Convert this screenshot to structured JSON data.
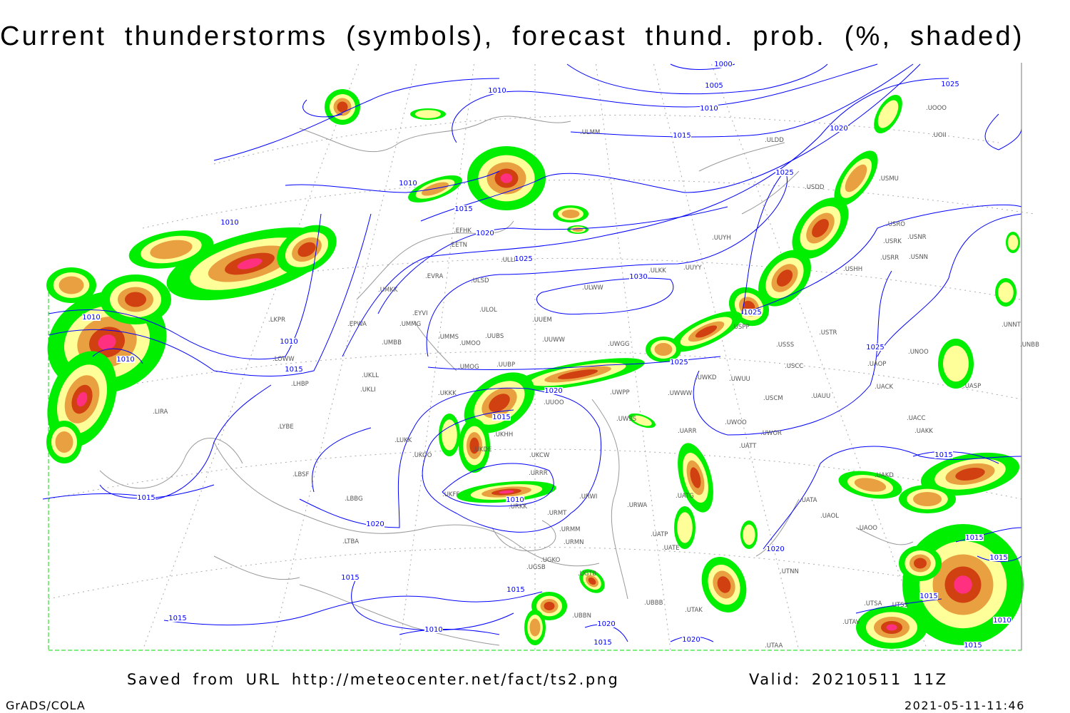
{
  "title": "Current thunderstorms (symbols), forecast thund. prob. (%, shaded)",
  "footer": {
    "saved_from": "Saved from URL http://meteocenter.net/fact/ts2.png",
    "valid": "Valid: 20210511 11Z",
    "software": "GrADS/COLA",
    "timestamp": "2021-05-11-11:46"
  },
  "colors": {
    "isobar": "#0000ff",
    "coastline": "#999999",
    "prob_low": "#00ee00",
    "prob_mid": "#ffff99",
    "prob_high": "#e8a040",
    "prob_very_high": "#d04010",
    "prob_extreme": "#ff3080"
  },
  "isobar_labels": [
    "1000",
    "1005",
    "1010",
    "1010",
    "1015",
    "1020",
    "1025",
    "1010",
    "1010",
    "1015",
    "1020",
    "1025",
    "1030",
    "1025",
    "1025",
    "1010",
    "1010",
    "1015",
    "1010",
    "1015",
    "1020",
    "1020",
    "1015",
    "1025",
    "1020",
    "1015",
    "1015",
    "1015",
    "1010",
    "1020",
    "1015",
    "1020",
    "1015",
    "1025",
    "1015",
    "1015",
    "1010",
    "1015",
    "1010",
    "1015"
  ],
  "stations": [
    "ULMM",
    "ULDD",
    "USMU",
    "USDD",
    "USRO",
    "USRK",
    "USNR",
    "USRR",
    "USNN",
    "USHH",
    "UUYH",
    "ULKK",
    "UUYY",
    "ULWW",
    "ULOL",
    "UUEM",
    "EFHK",
    "EETN",
    "EVRA",
    "ULLI",
    "ULSD",
    "EYVI",
    "UMKK",
    "UMMG",
    "EPWA",
    "UMMS",
    "UMOO",
    "UUBS",
    "UUWW",
    "UWGG",
    "UMBB",
    "LKPR",
    "LOWW",
    "LHBP",
    "UKLL",
    "UKLI",
    "UUBP",
    "UMOG",
    "UKKK",
    "UUOO",
    "UWPP",
    "UWKD",
    "UWWW",
    "UWUU",
    "USSS",
    "USTR",
    "USPP",
    "USCC",
    "USCM",
    "UAUU",
    "UACK",
    "UAOP",
    "UNOO",
    "UNNT",
    "UNBB",
    "UASP",
    "UACC",
    "UAKK",
    "UWOO",
    "UWOR",
    "UATT",
    "UWSS",
    "UARR",
    "LIRA",
    "LYBE",
    "LBSF",
    "LBBG",
    "LUKK",
    "UKOO",
    "UKFF",
    "UKHH",
    "UKDE",
    "UKCW",
    "URRR",
    "URKK",
    "URMT",
    "URWI",
    "URWA",
    "UATG",
    "UATA",
    "UAOL",
    "UAOO",
    "UAKD",
    "UATE",
    "UATP",
    "URMM",
    "URMN",
    "UGKO",
    "UGSB",
    "UGTB",
    "UBBB",
    "UTAK",
    "UTNN",
    "UBBN",
    "UTSA",
    "UTSS",
    "UTAV",
    "UTAA",
    "LTBA",
    "UOOO",
    "UOII"
  ]
}
